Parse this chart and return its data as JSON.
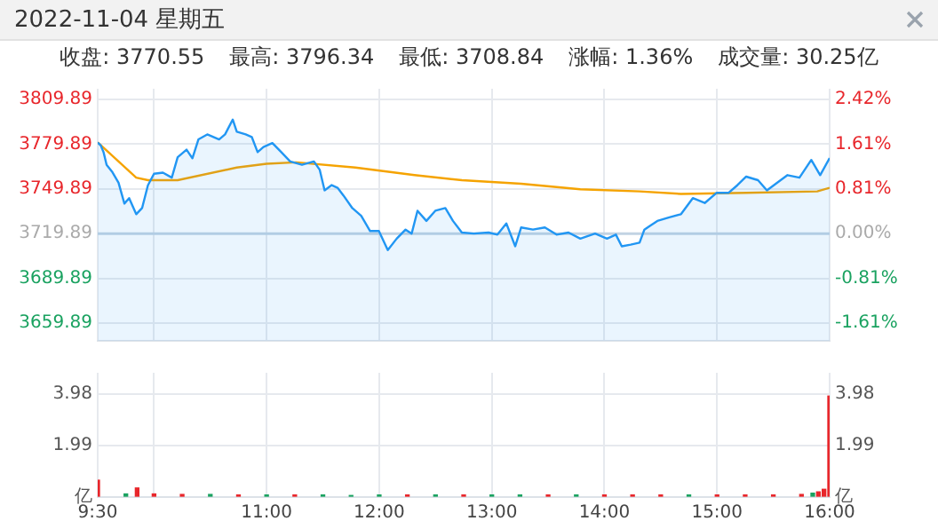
{
  "chart_data": [
    {
      "type": "area",
      "title": "2022-11-04 星期五",
      "annotations": [
        "收盘: 3770.55",
        "最高: 3796.34",
        "最低: 3708.84",
        "涨幅: 1.36%",
        "成交量: 30.25亿"
      ],
      "series": [
        {
          "type": "area",
          "color": "#2196f3",
          "x": [
            9.5,
            9.527,
            9.552,
            9.579,
            9.631,
            9.685,
            9.737,
            9.779,
            9.842,
            9.894,
            9.946,
            10.0,
            10.079,
            10.158,
            10.21,
            10.289,
            10.341,
            10.395,
            10.473,
            10.578,
            10.631,
            10.699,
            10.735,
            10.814,
            10.868,
            10.92,
            10.972,
            11.051,
            11.13,
            11.209,
            11.314,
            11.42,
            11.472,
            11.515,
            11.578,
            11.63,
            11.682,
            11.761,
            11.84,
            11.919,
            11.997,
            12.076,
            12.155,
            12.234,
            12.288,
            12.34,
            12.419,
            12.498,
            12.587,
            12.655,
            12.734,
            12.84,
            12.971,
            13.05,
            13.129,
            13.208,
            13.26,
            13.365,
            13.471,
            13.575,
            13.681,
            13.786,
            13.917,
            14.023,
            14.102,
            14.154,
            14.233,
            14.312,
            14.355,
            14.47,
            14.576,
            14.68,
            14.785,
            14.891,
            14.995,
            15.101,
            15.18,
            15.259,
            15.364,
            15.443,
            15.522,
            15.626,
            15.732,
            15.837,
            15.916,
            16.0
          ],
          "values": [
            3781,
            3779,
            3774.5,
            3766,
            3761,
            3754,
            3740,
            3743.7,
            3732.9,
            3737,
            3752.3,
            3760,
            3760.8,
            3757.4,
            3771.1,
            3776.2,
            3770.4,
            3783.1,
            3786.4,
            3783,
            3786.4,
            3796.34,
            3788.2,
            3786.4,
            3784.7,
            3774.5,
            3778,
            3780.6,
            3774.5,
            3768.3,
            3766,
            3768.3,
            3762.6,
            3748.9,
            3752.4,
            3750.6,
            3745.5,
            3737,
            3731.8,
            3721.6,
            3721.6,
            3708.84,
            3716.5,
            3722.6,
            3719.9,
            3735.2,
            3728.4,
            3735.2,
            3737,
            3728.4,
            3720.6,
            3719.9,
            3720.6,
            3719.2,
            3726.7,
            3711.4,
            3724,
            3722.6,
            3724,
            3719.2,
            3720.6,
            3716.5,
            3719.9,
            3716.5,
            3719.2,
            3711.4,
            3712.5,
            3713.8,
            3722.6,
            3728.4,
            3730.8,
            3732.9,
            3743.7,
            3740.4,
            3747.2,
            3747.2,
            3752.3,
            3758.1,
            3755.7,
            3748.9,
            3753.3,
            3759.1,
            3757.4,
            3769.3,
            3759.1,
            3770.55
          ]
        },
        {
          "type": "line",
          "color": "#f5a300",
          "x": [
            9.5,
            9.842,
            9.946,
            10.21,
            10.735,
            11.0,
            11.262,
            11.788,
            12.313,
            12.734,
            13.26,
            13.786,
            14.312,
            14.68,
            15.259,
            15.89,
            16.0
          ],
          "values": [
            3781,
            3757.4,
            3755.7,
            3755.7,
            3764.2,
            3766.7,
            3767.7,
            3764.2,
            3759.1,
            3755.7,
            3753.3,
            3749.6,
            3748.2,
            3746.5,
            3747.2,
            3748.2,
            3750.6
          ]
        }
      ],
      "xlim": [
        9.5,
        16
      ],
      "xticks": [
        {
          "value": 9.5,
          "label": null
        },
        {
          "value": 10,
          "label": null
        },
        {
          "value": 11,
          "label": null
        },
        {
          "value": 12,
          "label": null
        },
        {
          "value": 13,
          "label": null
        },
        {
          "value": 14,
          "label": null
        },
        {
          "value": 15,
          "label": null
        },
        {
          "value": 16,
          "label": null
        }
      ],
      "ylim": [
        3648,
        3817
      ],
      "yticks": [
        3659.89,
        3689.89,
        3719.89,
        3749.89,
        3779.89,
        3809.89
      ],
      "y2lim": [
        -1.93,
        2.61
      ],
      "y2ticks": [
        {
          "value": -1.61,
          "label": "-1.61%"
        },
        {
          "value": -0.81,
          "label": "-0.81%"
        },
        {
          "value": 0,
          "label": "0.00%"
        },
        {
          "value": 0.81,
          "label": "0.81%"
        },
        {
          "value": 1.61,
          "label": "1.61%"
        },
        {
          "value": 2.42,
          "label": "2.42%"
        }
      ],
      "ref_lines": [
        {
          "axis": "y",
          "value": 3719.89,
          "color": "#c2d3e3"
        }
      ],
      "grid": true,
      "legend": false,
      "tick_labels": "y"
    },
    {
      "type": "bar",
      "x": [
        9.5,
        9.75,
        9.85,
        10,
        10.25,
        10.5,
        10.75,
        11,
        11.25,
        11.5,
        11.75,
        12,
        12.25,
        12.5,
        12.75,
        13,
        13.25,
        13.5,
        13.75,
        14,
        14.25,
        14.5,
        14.75,
        15,
        15.25,
        15.5,
        15.75,
        15.85,
        15.9,
        15.95,
        16.0
      ],
      "values": [
        0.65,
        0.12,
        0.35,
        0.12,
        0.1,
        0.1,
        0.08,
        0.08,
        0.08,
        0.08,
        0.06,
        0.08,
        0.08,
        0.08,
        0.08,
        0.08,
        0.08,
        0.08,
        0.08,
        0.08,
        0.08,
        0.08,
        0.08,
        0.08,
        0.08,
        0.08,
        0.1,
        0.15,
        0.2,
        0.3,
        3.9
      ],
      "colors": [
        "#e8262b",
        "#1aa260",
        "#e8262b",
        "#e8262b",
        "#e8262b",
        "#1aa260",
        "#e8262b",
        "#1aa260",
        "#e8262b",
        "#1aa260",
        "#1aa260",
        "#1aa260",
        "#e8262b",
        "#1aa260",
        "#e8262b",
        "#1aa260",
        "#1aa260",
        "#e8262b",
        "#1aa260",
        "#e8262b",
        "#e8262b",
        "#e8262b",
        "#1aa260",
        "#e8262b",
        "#e8262b",
        "#e8262b",
        "#e8262b",
        "#1aa260",
        "#e8262b",
        "#e8262b",
        "#e8262b"
      ],
      "xlim": [
        9.5,
        16
      ],
      "xticks": [
        {
          "value": 9.5,
          "label": "9:30"
        },
        {
          "value": 10,
          "label": null
        },
        {
          "value": 11,
          "label": "11:00"
        },
        {
          "value": 12,
          "label": "12:00"
        },
        {
          "value": 13,
          "label": "13:00"
        },
        {
          "value": 14,
          "label": "14:00"
        },
        {
          "value": 15,
          "label": "15:00"
        },
        {
          "value": 16,
          "label": "16:00"
        }
      ],
      "ylim": [
        0,
        4.8
      ],
      "yticks": [
        {
          "value": 0,
          "label": "亿"
        },
        1.99,
        3.98
      ],
      "y2lim": [
        0,
        4.8
      ],
      "y2ticks": [
        {
          "value": 0,
          "label": "亿"
        },
        1.99,
        3.98
      ],
      "grid": true,
      "legend": false
    }
  ]
}
